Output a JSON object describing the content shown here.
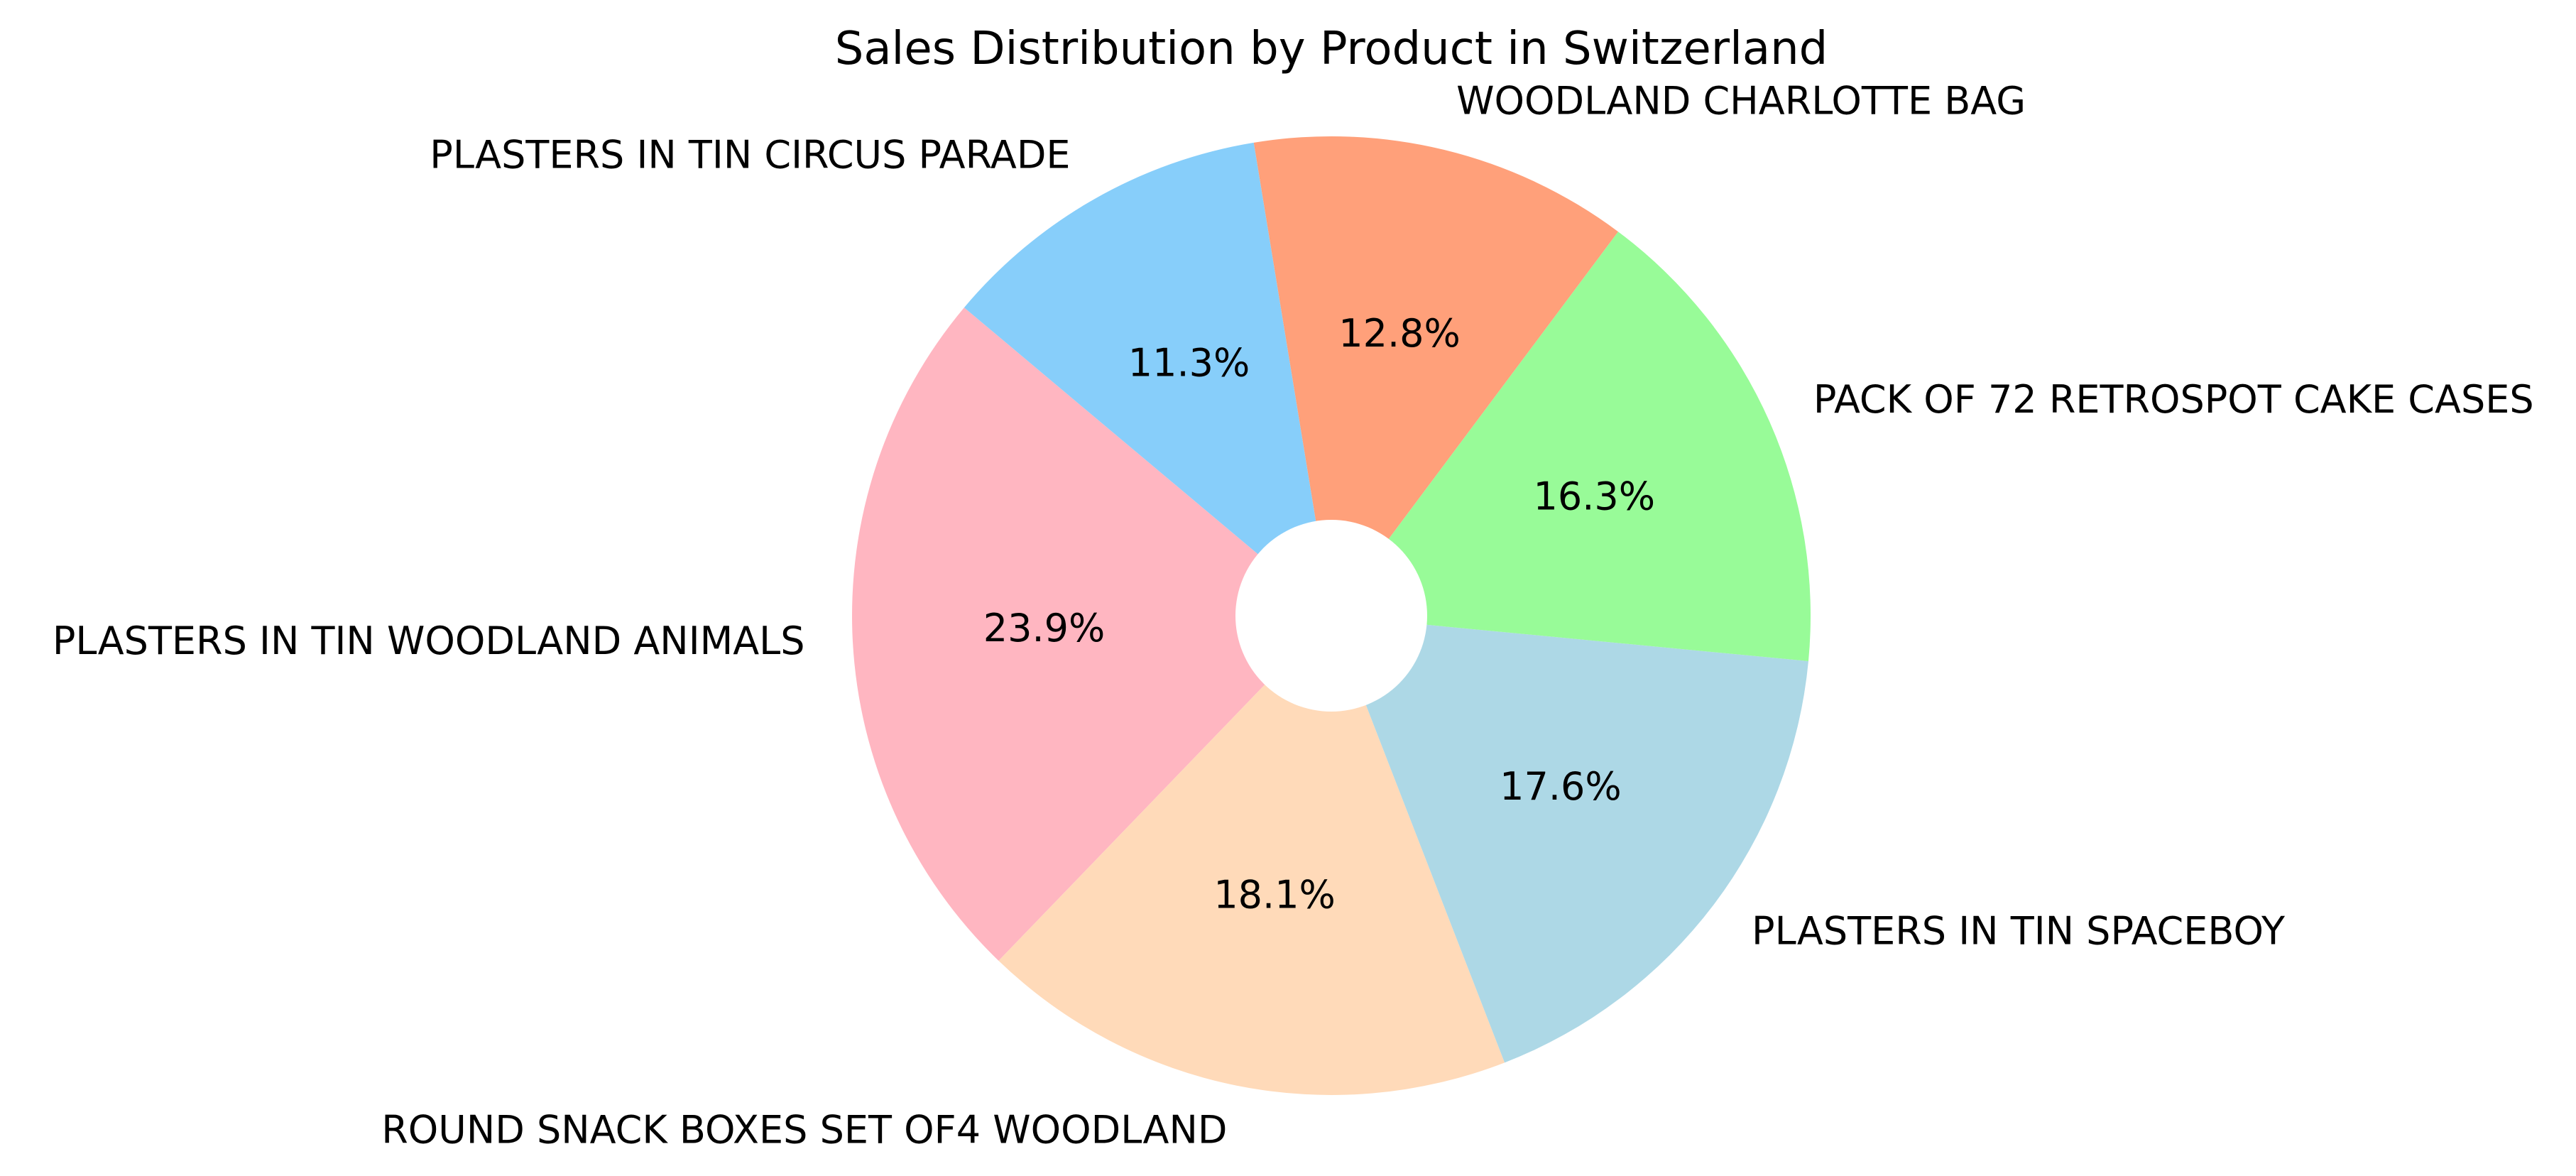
{
  "chart_data": {
    "type": "pie",
    "title": "Sales Distribution by Product in Switzerland",
    "start_angle_deg": 140,
    "direction": "counterclockwise",
    "hole": true,
    "slices": [
      {
        "label": "PLASTERS IN TIN WOODLAND ANIMALS",
        "value": 23.9,
        "pct_label": "23.9%",
        "color": "#ffb6c1"
      },
      {
        "label": "ROUND SNACK BOXES SET OF4 WOODLAND",
        "value": 18.1,
        "pct_label": "18.1%",
        "color": "#ffdab9"
      },
      {
        "label": "PLASTERS IN TIN SPACEBOY",
        "value": 17.6,
        "pct_label": "17.6%",
        "color": "#add8e6"
      },
      {
        "label": "PACK OF 72 RETROSPOT CAKE CASES",
        "value": 16.3,
        "pct_label": "16.3%",
        "color": "#98fb98"
      },
      {
        "label": "WOODLAND CHARLOTTE BAG",
        "value": 12.8,
        "pct_label": "12.8%",
        "color": "#ffa07a"
      },
      {
        "label": "PLASTERS IN TIN CIRCUS PARADE",
        "value": 11.3,
        "pct_label": "11.3%",
        "color": "#87cefa"
      }
    ]
  }
}
